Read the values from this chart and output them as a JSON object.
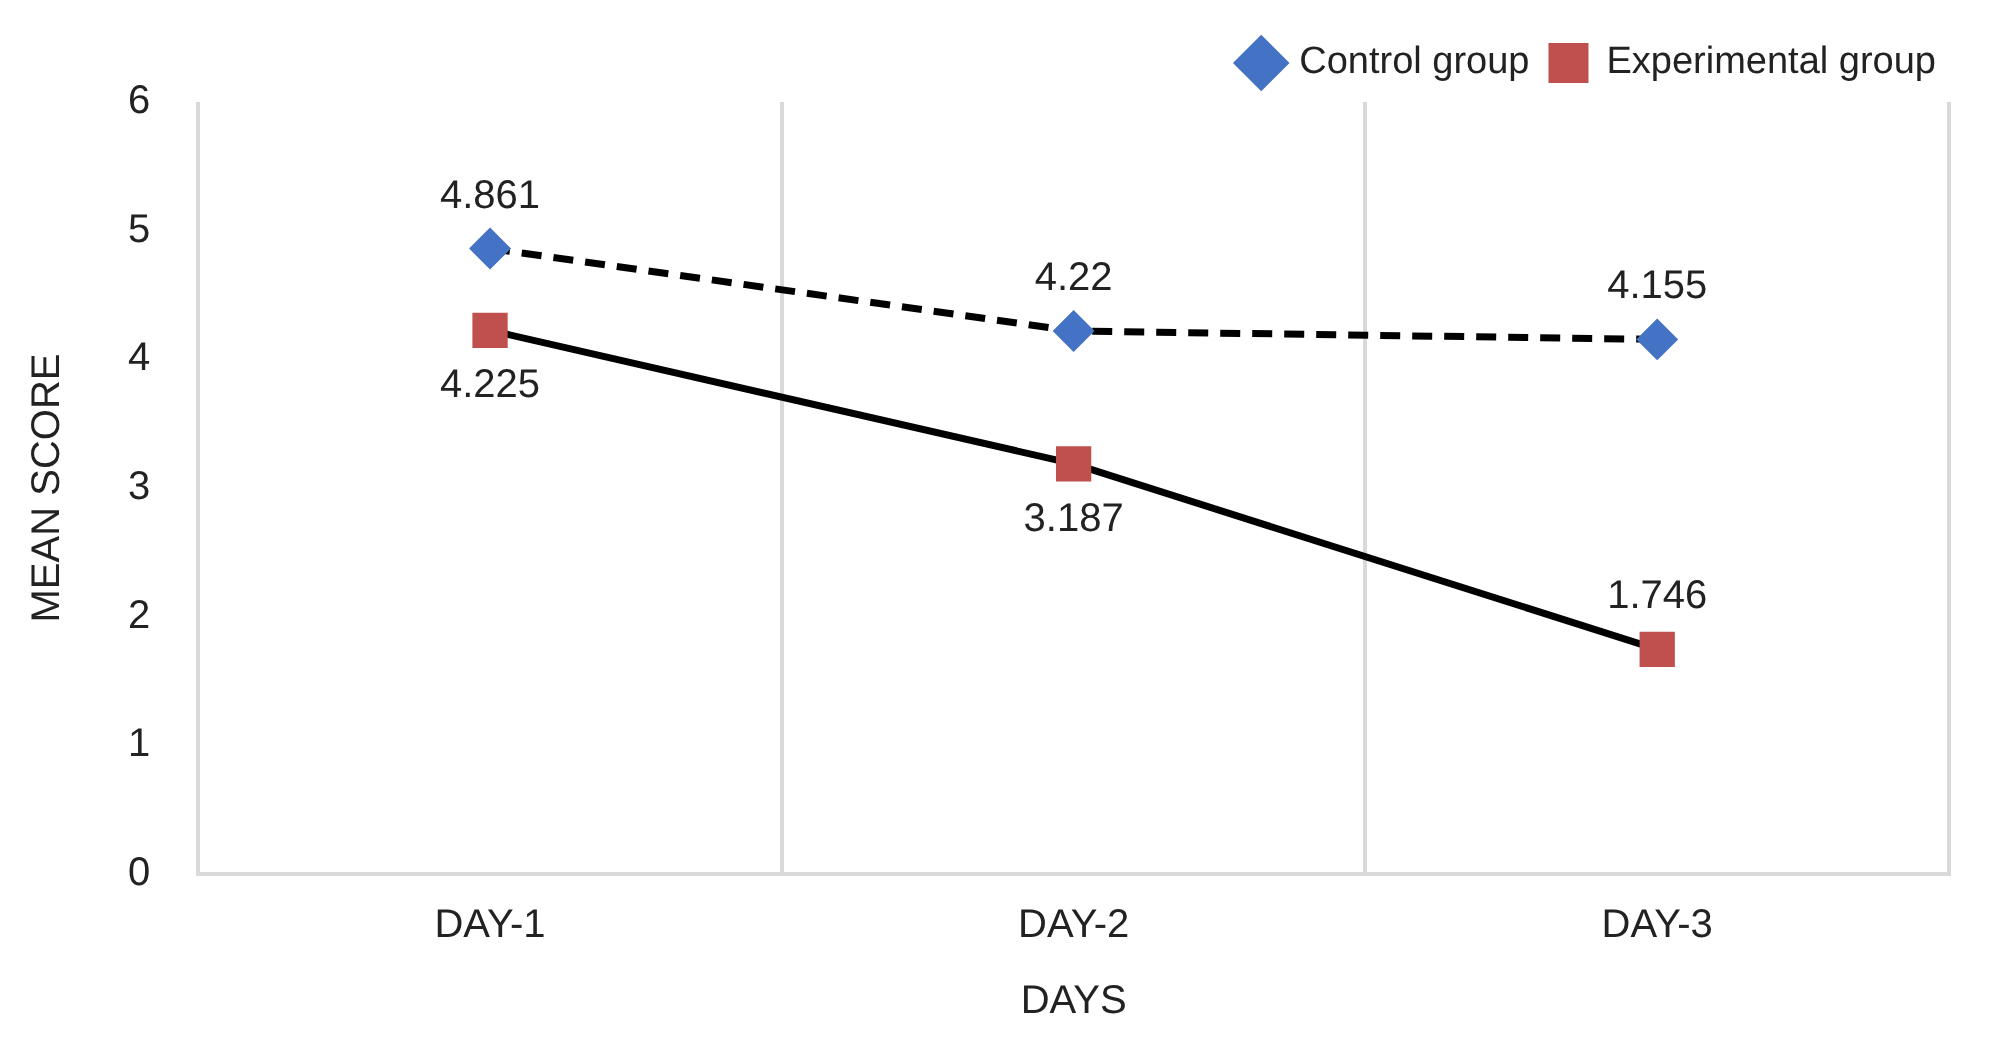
{
  "chart_data": {
    "type": "line",
    "xlabel": "DAYS",
    "ylabel": "MEAN SCORE",
    "categories": [
      "DAY-1",
      "DAY-2",
      "DAY-3"
    ],
    "series": [
      {
        "name": "Control group",
        "color": "#4472c4",
        "values": [
          4.861,
          4.22,
          4.155
        ],
        "marker": "diamond",
        "line_style": "dashed"
      },
      {
        "name": "Experimental group",
        "color": "#c0504d",
        "values": [
          4.225,
          3.187,
          1.746
        ],
        "marker": "square",
        "line_style": "solid"
      }
    ],
    "ylim": [
      0,
      6
    ],
    "yticks": [
      0,
      1,
      2,
      3,
      4,
      5,
      6
    ],
    "grid": "x",
    "legend": "top right",
    "data_labels": true
  }
}
